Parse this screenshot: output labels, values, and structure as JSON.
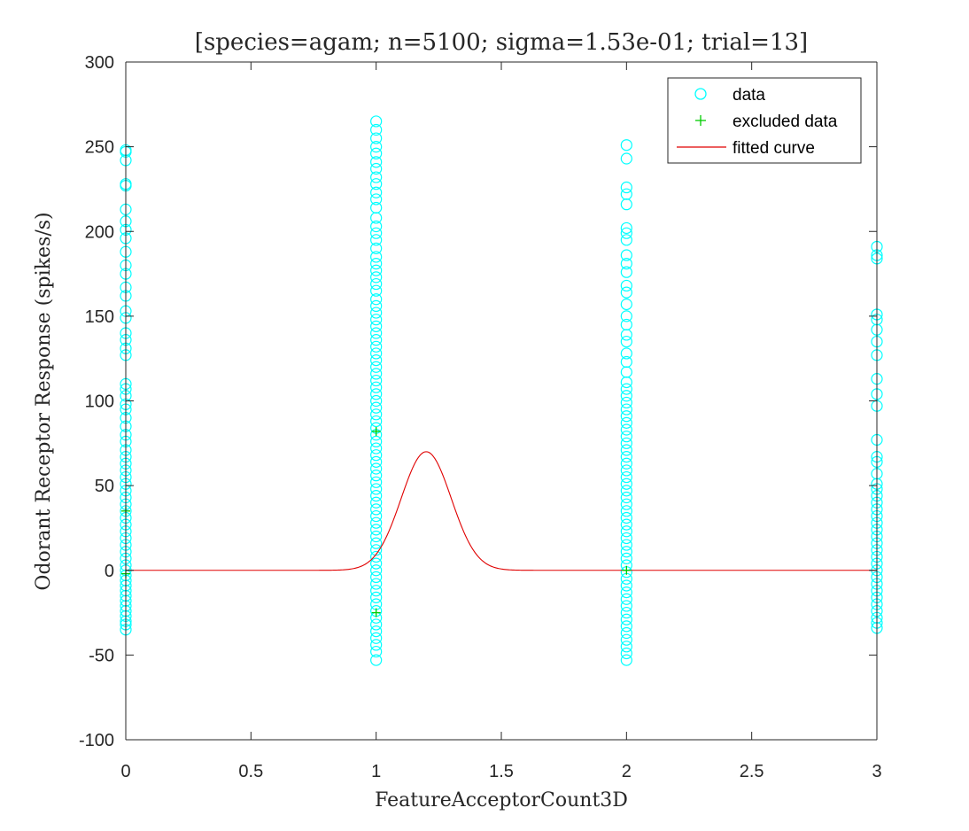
{
  "chart_data": {
    "type": "scatter",
    "title": "[species=agam; n=5100; sigma=1.53e-01; trial=13]",
    "xlabel": "FeatureAcceptorCount3D",
    "ylabel": "Odorant Receptor Response (spikes/s)",
    "xlim": [
      0,
      3
    ],
    "ylim": [
      -100,
      300
    ],
    "xticks": [
      0,
      0.5,
      1,
      1.5,
      2,
      2.5,
      3
    ],
    "xtick_labels": [
      "0",
      "0.5",
      "1",
      "1.5",
      "2",
      "2.5",
      "3"
    ],
    "yticks": [
      -100,
      -50,
      0,
      50,
      100,
      150,
      200,
      250,
      300
    ],
    "ytick_labels": [
      "-100",
      "-50",
      "0",
      "50",
      "100",
      "150",
      "200",
      "250",
      "300"
    ],
    "grid": false,
    "legend_position": "top-right",
    "colors": {
      "data": "#00ffff",
      "excluded": "#00cc00",
      "fit": "#e00000",
      "axis": "#262626"
    },
    "series": [
      {
        "name": "data",
        "marker": "circle",
        "columns": [
          {
            "x": 0,
            "y": [
              248,
              247,
              242,
              228,
              227,
              213,
              206,
              201,
              196,
              188,
              180,
              175,
              167,
              162,
              153,
              149,
              140,
              136,
              131,
              127,
              110,
              107,
              103,
              98,
              95,
              90,
              85,
              80,
              76,
              71,
              67,
              63,
              59,
              55,
              51,
              47,
              43,
              39,
              35,
              31,
              27,
              23,
              19,
              15,
              11,
              7,
              3,
              0,
              -3,
              -6,
              -9,
              -12,
              -15,
              -18,
              -21,
              -24,
              -27,
              -30,
              -32,
              -35
            ]
          },
          {
            "x": 1,
            "y": [
              265,
              260,
              255,
              250,
              246,
              241,
              237,
              232,
              228,
              223,
              219,
              214,
              208,
              203,
              199,
              195,
              190,
              185,
              181,
              177,
              173,
              169,
              165,
              160,
              156,
              152,
              148,
              144,
              140,
              136,
              132,
              128,
              124,
              120,
              116,
              112,
              108,
              104,
              100,
              96,
              92,
              88,
              84,
              80,
              76,
              72,
              68,
              64,
              60,
              56,
              52,
              48,
              44,
              40,
              36,
              32,
              28,
              24,
              20,
              16,
              12,
              8,
              4,
              0,
              -4,
              -8,
              -12,
              -16,
              -20,
              -24,
              -28,
              -32,
              -36,
              -40,
              -44,
              -48,
              -53
            ]
          },
          {
            "x": 2,
            "y": [
              251,
              243,
              226,
              222,
              216,
              202,
              199,
              195,
              186,
              181,
              176,
              168,
              164,
              157,
              150,
              145,
              139,
              135,
              128,
              123,
              117,
              111,
              107,
              103,
              99,
              95,
              91,
              87,
              83,
              79,
              75,
              71,
              67,
              63,
              59,
              55,
              51,
              47,
              43,
              39,
              35,
              31,
              27,
              23,
              19,
              15,
              11,
              7,
              3,
              -1,
              -5,
              -9,
              -13,
              -17,
              -21,
              -25,
              -29,
              -33,
              -37,
              -41,
              -45,
              -49,
              -53
            ]
          },
          {
            "x": 3,
            "y": [
              191,
              186,
              184,
              151,
              148,
              142,
              135,
              127,
              113,
              104,
              97,
              77,
              67,
              64,
              57,
              51,
              48,
              44,
              40,
              36,
              32,
              28,
              24,
              20,
              16,
              12,
              8,
              4,
              0,
              -4,
              -8,
              -12,
              -16,
              -20,
              -24,
              -28,
              -31,
              -34
            ]
          }
        ]
      },
      {
        "name": "excluded data",
        "marker": "plus",
        "points": [
          [
            0,
            35
          ],
          [
            0,
            -2
          ],
          [
            1,
            82
          ],
          [
            1,
            -25
          ],
          [
            2,
            0
          ]
        ]
      },
      {
        "name": "fitted curve",
        "type": "line",
        "model": "gaussian",
        "amplitude": 70,
        "center": 1.2,
        "sigma": 0.1,
        "baseline": 0
      }
    ]
  }
}
